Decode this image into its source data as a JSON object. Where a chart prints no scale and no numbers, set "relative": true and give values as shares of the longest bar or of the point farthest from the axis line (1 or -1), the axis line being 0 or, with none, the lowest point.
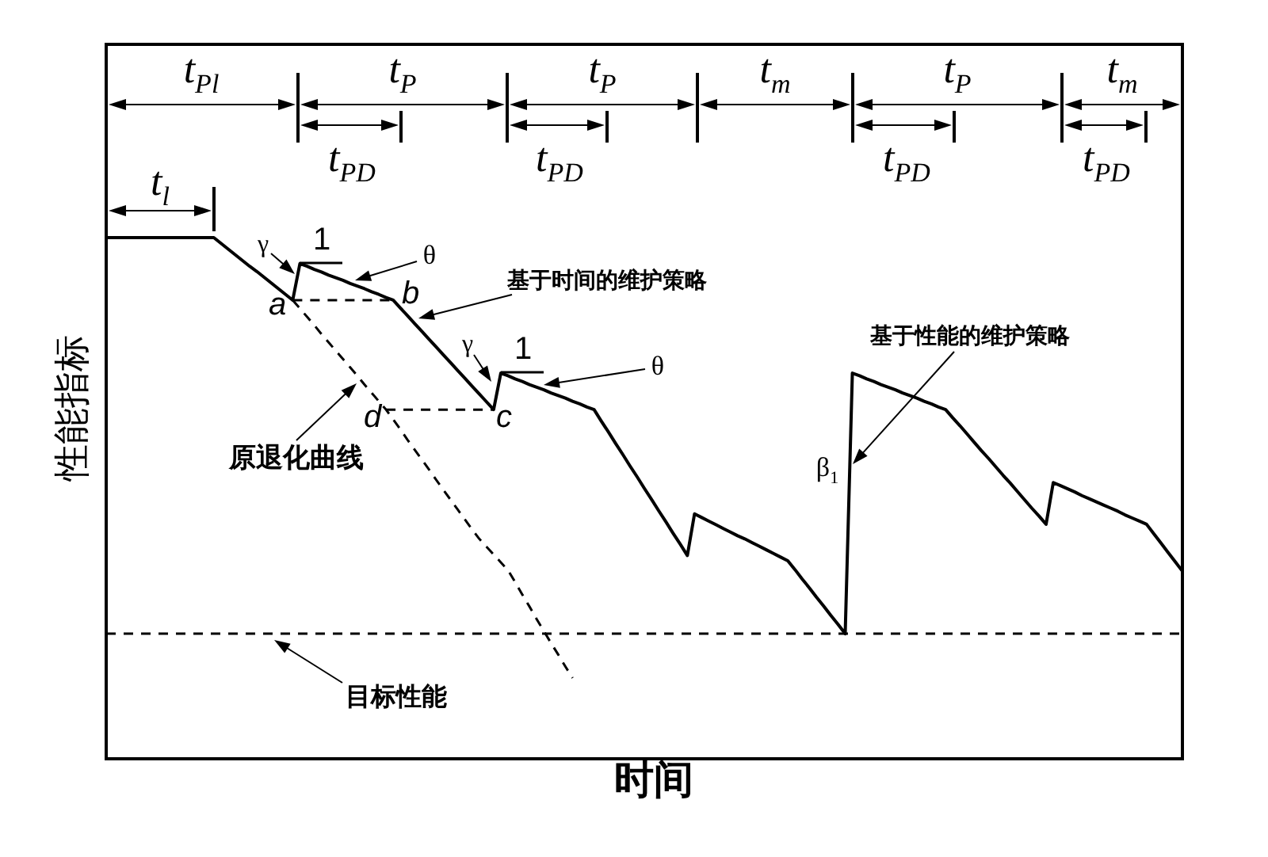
{
  "chart_data": {
    "type": "line",
    "xlabel": "时间",
    "ylabel": "性能指标",
    "relative": true,
    "legend": false,
    "marker": "none",
    "categories": [
      null,
      null,
      null,
      null,
      null,
      null,
      null,
      null,
      null,
      null,
      null,
      null,
      null,
      null,
      null,
      null,
      null,
      null,
      null,
      null,
      null,
      null,
      null,
      null,
      null,
      null,
      null,
      null,
      null,
      null,
      null,
      null,
      null,
      null,
      null,
      null,
      null,
      null,
      null,
      null,
      null,
      null,
      null,
      null,
      null,
      null,
      null,
      null,
      null,
      null,
      null,
      null,
      null,
      null,
      null,
      null,
      null,
      null,
      null,
      null,
      null,
      null,
      null,
      null,
      null,
      null,
      null,
      null,
      null,
      null,
      null,
      null,
      null,
      null,
      null,
      null,
      null,
      null,
      null,
      null,
      null,
      null,
      null,
      null,
      null,
      null,
      null,
      null,
      null,
      null,
      null,
      null,
      null,
      null,
      null,
      null,
      null,
      null,
      null,
      null,
      null,
      null,
      null,
      null,
      null,
      null,
      null,
      null,
      null,
      null,
      null,
      null,
      null,
      null,
      null,
      null,
      null,
      null,
      null,
      null,
      null,
      null,
      null,
      null,
      null,
      null,
      null,
      null,
      null,
      null,
      null,
      null,
      null,
      null,
      null,
      null,
      null,
      null,
      null,
      null,
      null,
      null,
      null,
      null,
      null,
      null,
      null,
      null,
      null,
      null,
      null
    ],
    "series": [
      {
        "color": "#000000",
        "values": [
          1,
          1,
          1,
          1,
          1,
          1,
          1,
          1,
          1,
          1,
          1,
          1,
          1,
          1,
          1,
          1,
          0.989,
          0.978,
          0.967,
          0.956,
          0.945,
          0.935,
          0.924,
          0.913,
          0.902,
          0.891,
          0.88,
          0.95,
          0.945,
          0.939,
          0.934,
          0.928,
          0.923,
          0.918,
          0.912,
          0.907,
          0.902,
          0.896,
          0.891,
          0.885,
          0.88,
          0.865,
          0.85,
          0.835,
          0.82,
          0.805,
          0.79,
          0.775,
          0.76,
          0.745,
          0.73,
          0.715,
          0.7,
          0.685,
          0.67,
          0.74,
          0.735,
          0.729,
          0.724,
          0.718,
          0.713,
          0.708,
          0.702,
          0.697,
          0.692,
          0.686,
          0.681,
          0.675,
          0.67,
          0.648,
          0.627,
          0.605,
          0.584,
          0.562,
          0.541,
          0.519,
          0.498,
          0.476,
          0.455,
          0.433,
          0.412,
          0.39,
          0.47,
          0.463,
          0.456,
          0.449,
          0.442,
          0.435,
          0.428,
          0.422,
          0.415,
          0.408,
          0.401,
          0.394,
          0.387,
          0.38,
          0.363,
          0.345,
          0.328,
          0.31,
          0.293,
          0.275,
          0.258,
          0.24,
          0.74,
          0.735,
          0.729,
          0.724,
          0.718,
          0.713,
          0.708,
          0.702,
          0.697,
          0.692,
          0.686,
          0.681,
          0.675,
          0.67,
          0.654,
          0.639,
          0.623,
          0.607,
          0.591,
          0.576,
          0.56,
          0.544,
          0.529,
          0.513,
          0.497,
          0.481,
          0.466,
          0.45,
          0.53,
          0.524,
          0.518,
          0.512,
          0.505,
          0.499,
          0.493,
          0.487,
          0.481,
          0.475,
          0.468,
          0.462,
          0.456,
          0.45,
          0.432,
          0.414,
          0.396,
          0.378,
          0.36
        ]
      },
      {
        "color": "#000000",
        "line_style": "dashed",
        "values": [
          null,
          null,
          null,
          null,
          null,
          null,
          null,
          null,
          null,
          null,
          null,
          null,
          null,
          null,
          null,
          null,
          null,
          null,
          null,
          null,
          null,
          null,
          null,
          null,
          null,
          null,
          0.88,
          0.864,
          0.848,
          0.832,
          0.815,
          0.799,
          0.783,
          0.767,
          0.751,
          0.735,
          0.718,
          0.702,
          0.686,
          0.67,
          0.651,
          0.632,
          0.612,
          0.593,
          0.574,
          0.555,
          0.535,
          0.516,
          0.497,
          0.478,
          0.459,
          0.44,
          0.422,
          0.407,
          0.392,
          0.377,
          0.362,
          0.339,
          0.315,
          0.292,
          0.268,
          0.245,
          0.222,
          0.2,
          0.177,
          0.155,
          null,
          null,
          null,
          null,
          null,
          null,
          null,
          null,
          null,
          null,
          null,
          null,
          null,
          null,
          null,
          null,
          null,
          null,
          null,
          null,
          null,
          null,
          null,
          null,
          null,
          null,
          null,
          null,
          null,
          null,
          null,
          null,
          null,
          null,
          null,
          null,
          null,
          null,
          null,
          null,
          null,
          null,
          null,
          null,
          null,
          null,
          null,
          null,
          null,
          null,
          null,
          null,
          null,
          null,
          null,
          null,
          null,
          null,
          null,
          null,
          null,
          null,
          null,
          null,
          null,
          null,
          null,
          null,
          null,
          null,
          null,
          null,
          null,
          null,
          null,
          null,
          null,
          null,
          null,
          null,
          null,
          null,
          null,
          null,
          null
        ]
      },
      {
        "color": "#000000",
        "line_style": "dashed",
        "values": [
          null,
          null,
          null,
          null,
          null,
          null,
          null,
          null,
          null,
          null,
          null,
          null,
          null,
          null,
          null,
          null,
          null,
          null,
          null,
          null,
          null,
          null,
          null,
          null,
          null,
          null,
          0.88,
          0.88,
          0.88,
          0.88,
          0.88,
          0.88,
          0.88,
          0.88,
          0.88,
          0.88,
          0.88,
          0.88,
          0.88,
          0.88,
          0.88,
          null,
          null,
          null,
          null,
          null,
          null,
          null,
          null,
          null,
          null,
          null,
          null,
          null,
          null,
          null,
          null,
          null,
          null,
          null,
          null,
          null,
          null,
          null,
          null,
          null,
          null,
          null,
          null,
          null,
          null,
          null,
          null,
          null,
          null,
          null,
          null,
          null,
          null,
          null,
          null,
          null,
          null,
          null,
          null,
          null,
          null,
          null,
          null,
          null,
          null,
          null,
          null,
          null,
          null,
          null,
          null,
          null,
          null,
          null,
          null,
          null,
          null,
          null,
          null,
          null,
          null,
          null,
          null,
          null,
          null,
          null,
          null,
          null,
          null,
          null,
          null,
          null,
          null,
          null,
          null,
          null,
          null,
          null,
          null,
          null,
          null,
          null,
          null,
          null,
          null,
          null,
          null,
          null,
          null,
          null,
          null,
          null,
          null,
          null,
          null,
          null,
          null,
          null,
          null,
          null,
          null,
          null,
          null,
          null,
          null
        ]
      },
      {
        "color": "#000000",
        "line_style": "dashed",
        "values": [
          null,
          null,
          null,
          null,
          null,
          null,
          null,
          null,
          null,
          null,
          null,
          null,
          null,
          null,
          null,
          null,
          null,
          null,
          null,
          null,
          null,
          null,
          null,
          null,
          null,
          null,
          null,
          null,
          null,
          null,
          null,
          null,
          null,
          null,
          null,
          null,
          null,
          null,
          null,
          0.67,
          0.67,
          0.67,
          0.67,
          0.67,
          0.67,
          0.67,
          0.67,
          0.67,
          0.67,
          0.67,
          0.67,
          0.67,
          0.67,
          0.67,
          0.67,
          null,
          null,
          null,
          null,
          null,
          null,
          null,
          null,
          null,
          null,
          null,
          null,
          null,
          null,
          null,
          null,
          null,
          null,
          null,
          null,
          null,
          null,
          null,
          null,
          null,
          null,
          null,
          null,
          null,
          null,
          null,
          null,
          null,
          null,
          null,
          null,
          null,
          null,
          null,
          null,
          null,
          null,
          null,
          null,
          null,
          null,
          null,
          null,
          null,
          null,
          null,
          null,
          null,
          null,
          null,
          null,
          null,
          null,
          null,
          null,
          null,
          null,
          null,
          null,
          null,
          null,
          null,
          null,
          null,
          null,
          null,
          null,
          null,
          null,
          null,
          null,
          null,
          null,
          null,
          null,
          null,
          null,
          null,
          null,
          null,
          null,
          null,
          null,
          null,
          null,
          null,
          null,
          null,
          null,
          null,
          null
        ]
      }
    ],
    "ref_lines": [
      {
        "axis": "y",
        "value": 0.24,
        "label": "目标性能",
        "line_style": "dashed",
        "color": "#000000"
      }
    ],
    "annotations": [
      "t$_{Pl}$",
      "t$_{P}$",
      "t$_{P}$",
      "t$_{m}$",
      "t$_{P}$",
      "t$_{m}$",
      "t$_{PD}$",
      "t$_{PD}$",
      "t$_{PD}$",
      "t$_{PD}$",
      "t$_{l}$",
      "γ",
      "1",
      "θ",
      "a",
      "b",
      "基于时间的维护策略",
      "γ",
      "1",
      "θ",
      "c",
      "d",
      "原退化曲线",
      "基于性能的维护策略",
      "β$_{1}$"
    ]
  }
}
